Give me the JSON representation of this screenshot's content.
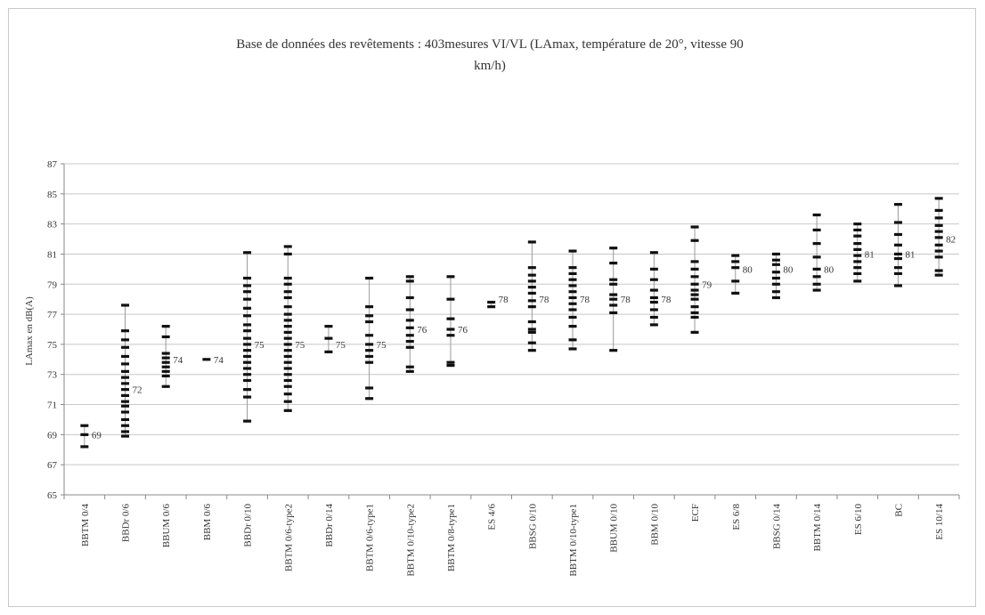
{
  "chart_data": {
    "type": "scatter",
    "title": "Base de données des revêtements : 403mesures VI/VL     (LAmax, température de 20°, vitesse 90\nkm/h)",
    "ylabel": "LAmax en dB(A)",
    "xlabel": "",
    "ylim": [
      65,
      87
    ],
    "yticks": [
      65,
      67,
      69,
      71,
      73,
      75,
      77,
      79,
      81,
      83,
      85,
      87
    ],
    "grid": true,
    "categories": [
      "BBTM 0/4",
      "BBDr 0/6",
      "BBUM 0/6",
      "BBM 0/6",
      "BBDr 0/10",
      "BBTM 0/6-type2",
      "BBDr 0/14",
      "BBTM 0/6-type1",
      "BBTM 0/10-type2",
      "BBTM 0/8-type1",
      "ES 4/6",
      "BBSG 0/10",
      "BBTM 0/10-type1",
      "BBUM 0/10",
      "BBM 0/10",
      "ECF",
      "ES 6/8",
      "BBSG 0/14",
      "BBTM 0/14",
      "ES 6/10",
      "BC",
      "ES 10/14"
    ],
    "mean_labels": [
      "69",
      "72",
      "74",
      "74",
      "75",
      "75",
      "75",
      "75",
      "76",
      "76",
      "78",
      "78",
      "78",
      "78",
      "78",
      "79",
      "80",
      "80",
      "80",
      "81",
      "81",
      "82"
    ],
    "means": [
      69,
      72,
      74,
      74,
      75,
      75,
      75,
      75,
      76,
      76,
      78,
      78,
      78,
      78,
      78,
      79,
      80,
      80,
      80,
      81,
      81,
      82
    ],
    "points": [
      [
        68.2,
        69.0,
        69.6
      ],
      [
        68.9,
        69.2,
        69.6,
        70.0,
        70.5,
        70.9,
        71.2,
        71.6,
        72.0,
        72.4,
        72.8,
        73.2,
        73.7,
        74.2,
        74.8,
        75.3,
        75.9,
        77.6
      ],
      [
        72.2,
        72.9,
        73.2,
        73.5,
        73.8,
        74.1,
        74.4,
        75.5,
        76.2
      ],
      [
        74.0
      ],
      [
        69.9,
        71.5,
        72.0,
        72.6,
        73.0,
        73.4,
        73.8,
        74.2,
        74.6,
        75.0,
        75.4,
        75.9,
        76.3,
        76.9,
        77.4,
        78.0,
        78.5,
        78.9,
        79.4,
        81.1
      ],
      [
        70.6,
        71.2,
        71.7,
        72.2,
        72.6,
        73.0,
        73.4,
        73.8,
        74.2,
        74.6,
        75.0,
        75.4,
        75.8,
        76.2,
        76.6,
        77.0,
        77.5,
        78.1,
        78.5,
        79.0,
        79.4,
        81.0,
        81.5
      ],
      [
        74.5,
        75.4,
        76.2
      ],
      [
        71.4,
        72.1,
        73.8,
        74.2,
        74.6,
        75.0,
        75.6,
        76.5,
        76.9,
        77.5,
        79.4
      ],
      [
        73.2,
        73.5,
        74.8,
        75.2,
        75.6,
        76.1,
        76.6,
        77.3,
        78.1,
        79.2,
        79.5
      ],
      [
        73.6,
        73.8,
        75.6,
        76.0,
        76.7,
        78.0,
        79.5
      ],
      [
        77.5,
        77.8
      ],
      [
        74.6,
        75.1,
        75.8,
        76.0,
        76.5,
        77.5,
        77.9,
        78.4,
        78.8,
        79.2,
        79.6,
        80.1,
        81.8
      ],
      [
        74.7,
        75.3,
        76.2,
        76.8,
        77.3,
        77.7,
        78.1,
        78.5,
        78.9,
        79.3,
        79.7,
        80.1,
        81.2
      ],
      [
        74.6,
        77.1,
        77.6,
        78.0,
        78.3,
        79.0,
        79.3,
        80.4,
        81.4
      ],
      [
        76.3,
        76.8,
        77.3,
        77.8,
        78.1,
        78.6,
        79.3,
        80.0,
        81.1
      ],
      [
        75.8,
        76.8,
        77.1,
        77.5,
        78.0,
        78.3,
        78.6,
        79.0,
        79.5,
        80.0,
        80.5,
        81.9,
        82.8
      ],
      [
        78.4,
        79.2,
        80.1,
        80.5,
        80.9
      ],
      [
        78.1,
        78.5,
        79.0,
        79.4,
        79.8,
        80.3,
        80.6,
        81.0
      ],
      [
        78.6,
        79.0,
        79.5,
        80.0,
        80.8,
        81.7,
        82.6,
        83.6
      ],
      [
        79.2,
        79.7,
        80.1,
        80.5,
        80.9,
        81.3,
        81.7,
        82.2,
        82.6,
        83.0
      ],
      [
        78.9,
        79.7,
        80.1,
        80.7,
        81.0,
        81.6,
        82.3,
        83.1,
        84.3
      ],
      [
        79.6,
        79.9,
        80.8,
        81.2,
        81.6,
        82.1,
        82.5,
        82.9,
        83.4,
        83.9,
        84.7
      ]
    ]
  }
}
